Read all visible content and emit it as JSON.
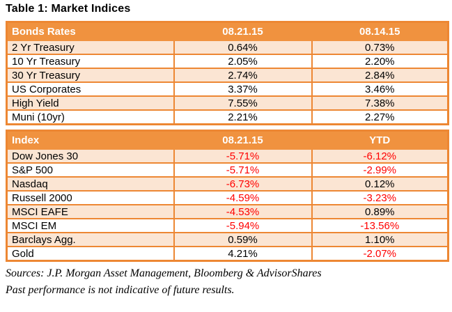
{
  "title": "Table 1: Market Indices",
  "tables": [
    {
      "name": "Bonds Rates",
      "header": [
        "Bonds Rates",
        "08.21.15",
        "08.14.15"
      ],
      "rows": [
        [
          "2 Yr Treasury",
          "0.64%",
          "0.73%"
        ],
        [
          "10 Yr Treasury",
          "2.05%",
          "2.20%"
        ],
        [
          "30 Yr Treasury",
          "2.74%",
          "2.84%"
        ],
        [
          "US Corporates",
          "3.37%",
          "3.46%"
        ],
        [
          "High Yield",
          "7.55%",
          "7.38%"
        ],
        [
          "Muni (10yr)",
          "2.21%",
          "2.27%"
        ]
      ]
    },
    {
      "name": "Index",
      "header": [
        "Index",
        "08.21.15",
        "YTD"
      ],
      "rows": [
        [
          "Dow Jones 30",
          "-5.71%",
          "-6.12%"
        ],
        [
          "S&P 500",
          "-5.71%",
          "-2.99%"
        ],
        [
          "Nasdaq",
          "-6.73%",
          "0.12%"
        ],
        [
          "Russell 2000",
          "-4.59%",
          "-3.23%"
        ],
        [
          "MSCI EAFE",
          "-4.53%",
          "0.89%"
        ],
        [
          "MSCI EM",
          "-5.94%",
          "-13.56%"
        ],
        [
          "Barclays Agg.",
          "0.59%",
          "1.10%"
        ],
        [
          "Gold",
          "4.21%",
          "-2.07%"
        ]
      ]
    }
  ],
  "footnotes": [
    "Sources: J.P. Morgan Asset Management, Bloomberg & AdvisorShares",
    "Past performance is not indicative of future results."
  ],
  "colors": {
    "header_fill": "#F0923F",
    "border_orange": "#ED8733",
    "row_light": "#FBE5D3",
    "row_white": "#FFFFFF",
    "header_text": "#FFFFFF",
    "negative_value": "#FF0000",
    "body_text": "#000000"
  }
}
